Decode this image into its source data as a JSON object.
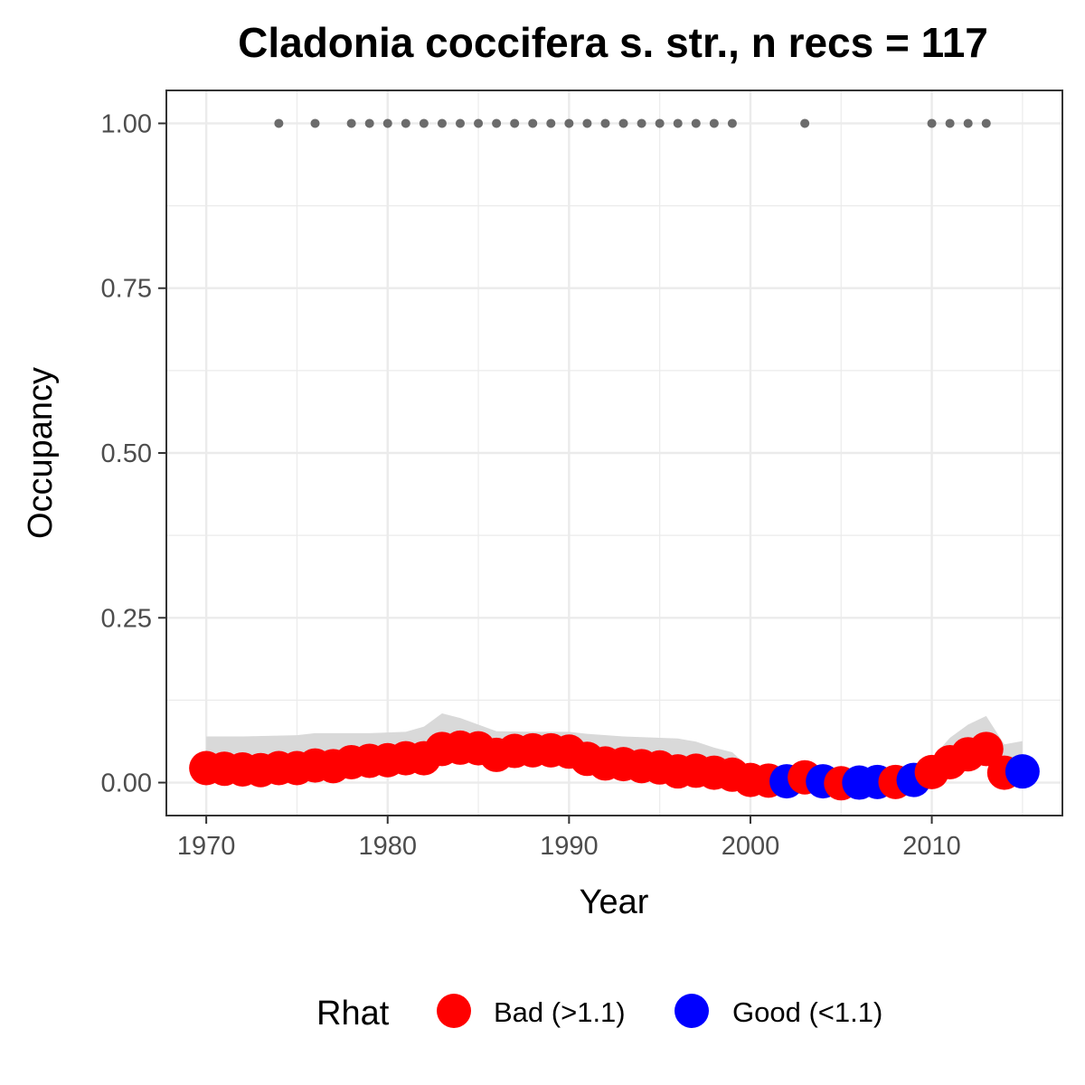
{
  "chart_data": {
    "type": "line",
    "title": "Cladonia coccifera s. str., n recs = 117",
    "xlabel": "Year",
    "ylabel": "Occupancy",
    "xlim": [
      1967.8,
      2017.2
    ],
    "ylim": [
      -0.05,
      1.05
    ],
    "x_ticks": [
      1970,
      1980,
      1990,
      2000,
      2010
    ],
    "y_ticks": [
      0,
      0.25,
      0.5,
      0.75,
      1.0
    ],
    "y_tick_labels": [
      "0.00",
      "0.25",
      "0.50",
      "0.75",
      "1.00"
    ],
    "grid": true,
    "legend_position": "bottom",
    "legend": {
      "title": "Rhat",
      "entries": [
        {
          "label": "Bad (>1.1)",
          "color": "#ff0000"
        },
        {
          "label": "Good (<1.1)",
          "color": "#0000ff"
        }
      ]
    },
    "colors": {
      "bad": "#ff0000",
      "good": "#0000ff",
      "ribbon": "#d9d9d9",
      "records": "#6b6b6b",
      "grid": "#ebebeb"
    },
    "points": [
      {
        "year": 1970,
        "occupancy": 0.022,
        "rhat": "bad"
      },
      {
        "year": 1971,
        "occupancy": 0.021,
        "rhat": "bad"
      },
      {
        "year": 1972,
        "occupancy": 0.02,
        "rhat": "bad"
      },
      {
        "year": 1973,
        "occupancy": 0.019,
        "rhat": "bad"
      },
      {
        "year": 1974,
        "occupancy": 0.022,
        "rhat": "bad"
      },
      {
        "year": 1975,
        "occupancy": 0.022,
        "rhat": "bad"
      },
      {
        "year": 1976,
        "occupancy": 0.026,
        "rhat": "bad"
      },
      {
        "year": 1977,
        "occupancy": 0.025,
        "rhat": "bad"
      },
      {
        "year": 1978,
        "occupancy": 0.031,
        "rhat": "bad"
      },
      {
        "year": 1979,
        "occupancy": 0.033,
        "rhat": "bad"
      },
      {
        "year": 1980,
        "occupancy": 0.034,
        "rhat": "bad"
      },
      {
        "year": 1981,
        "occupancy": 0.037,
        "rhat": "bad"
      },
      {
        "year": 1982,
        "occupancy": 0.037,
        "rhat": "bad"
      },
      {
        "year": 1983,
        "occupancy": 0.051,
        "rhat": "bad"
      },
      {
        "year": 1984,
        "occupancy": 0.053,
        "rhat": "bad"
      },
      {
        "year": 1985,
        "occupancy": 0.052,
        "rhat": "bad"
      },
      {
        "year": 1986,
        "occupancy": 0.042,
        "rhat": "bad"
      },
      {
        "year": 1987,
        "occupancy": 0.048,
        "rhat": "bad"
      },
      {
        "year": 1988,
        "occupancy": 0.049,
        "rhat": "bad"
      },
      {
        "year": 1989,
        "occupancy": 0.049,
        "rhat": "bad"
      },
      {
        "year": 1990,
        "occupancy": 0.047,
        "rhat": "bad"
      },
      {
        "year": 1991,
        "occupancy": 0.036,
        "rhat": "bad"
      },
      {
        "year": 1992,
        "occupancy": 0.029,
        "rhat": "bad"
      },
      {
        "year": 1993,
        "occupancy": 0.028,
        "rhat": "bad"
      },
      {
        "year": 1994,
        "occupancy": 0.025,
        "rhat": "bad"
      },
      {
        "year": 1995,
        "occupancy": 0.023,
        "rhat": "bad"
      },
      {
        "year": 1996,
        "occupancy": 0.017,
        "rhat": "bad"
      },
      {
        "year": 1997,
        "occupancy": 0.018,
        "rhat": "bad"
      },
      {
        "year": 1998,
        "occupancy": 0.015,
        "rhat": "bad"
      },
      {
        "year": 1999,
        "occupancy": 0.012,
        "rhat": "bad"
      },
      {
        "year": 2000,
        "occupancy": 0.004,
        "rhat": "bad"
      },
      {
        "year": 2001,
        "occupancy": 0.003,
        "rhat": "bad"
      },
      {
        "year": 2002,
        "occupancy": 0.002,
        "rhat": "good"
      },
      {
        "year": 2003,
        "occupancy": 0.008,
        "rhat": "bad"
      },
      {
        "year": 2004,
        "occupancy": 0.002,
        "rhat": "good"
      },
      {
        "year": 2005,
        "occupancy": -0.001,
        "rhat": "bad"
      },
      {
        "year": 2006,
        "occupancy": 0.0,
        "rhat": "good"
      },
      {
        "year": 2007,
        "occupancy": 0.001,
        "rhat": "good"
      },
      {
        "year": 2008,
        "occupancy": 0.001,
        "rhat": "bad"
      },
      {
        "year": 2009,
        "occupancy": 0.004,
        "rhat": "good"
      },
      {
        "year": 2010,
        "occupancy": 0.016,
        "rhat": "bad"
      },
      {
        "year": 2011,
        "occupancy": 0.031,
        "rhat": "bad"
      },
      {
        "year": 2012,
        "occupancy": 0.043,
        "rhat": "bad"
      },
      {
        "year": 2013,
        "occupancy": 0.051,
        "rhat": "bad"
      },
      {
        "year": 2014,
        "occupancy": 0.015,
        "rhat": "bad"
      },
      {
        "year": 2015,
        "occupancy": 0.017,
        "rhat": "good"
      }
    ],
    "ribbon": {
      "x": [
        1970,
        1972,
        1975,
        1976,
        1979,
        1981,
        1982,
        1983,
        1984,
        1985,
        1986,
        1988,
        1990,
        1991,
        1993,
        1995,
        1996,
        1997,
        1998,
        1999,
        2000,
        2001,
        2002,
        2003,
        2004,
        2005,
        2006,
        2007,
        2008,
        2009,
        2010,
        2011,
        2012,
        2013,
        2014,
        2015
      ],
      "upper": [
        0.07,
        0.07,
        0.072,
        0.075,
        0.075,
        0.077,
        0.085,
        0.105,
        0.098,
        0.088,
        0.078,
        0.077,
        0.077,
        0.074,
        0.07,
        0.068,
        0.067,
        0.062,
        0.053,
        0.046,
        0.021,
        0.014,
        0.011,
        0.018,
        0.011,
        0.006,
        0.006,
        0.008,
        0.009,
        0.014,
        0.037,
        0.068,
        0.088,
        0.101,
        0.058,
        0.063
      ],
      "lower": [
        0.012,
        0.011,
        0.011,
        0.014,
        0.019,
        0.022,
        0.023,
        0.031,
        0.034,
        0.034,
        0.028,
        0.032,
        0.03,
        0.022,
        0.016,
        0.012,
        0.009,
        0.008,
        0.006,
        0.004,
        0.0,
        0.0,
        0.0,
        0.0,
        0.0,
        0.0,
        0.0,
        0.0,
        0.0,
        0.0,
        0.004,
        0.014,
        0.022,
        0.03,
        0.003,
        0.004
      ]
    },
    "record_years": [
      1974,
      1976,
      1978,
      1979,
      1980,
      1981,
      1982,
      1983,
      1984,
      1985,
      1986,
      1987,
      1988,
      1989,
      1990,
      1991,
      1992,
      1993,
      1994,
      1995,
      1996,
      1997,
      1998,
      1999,
      2003,
      2010,
      2011,
      2012,
      2013
    ],
    "record_value": 1.0
  }
}
